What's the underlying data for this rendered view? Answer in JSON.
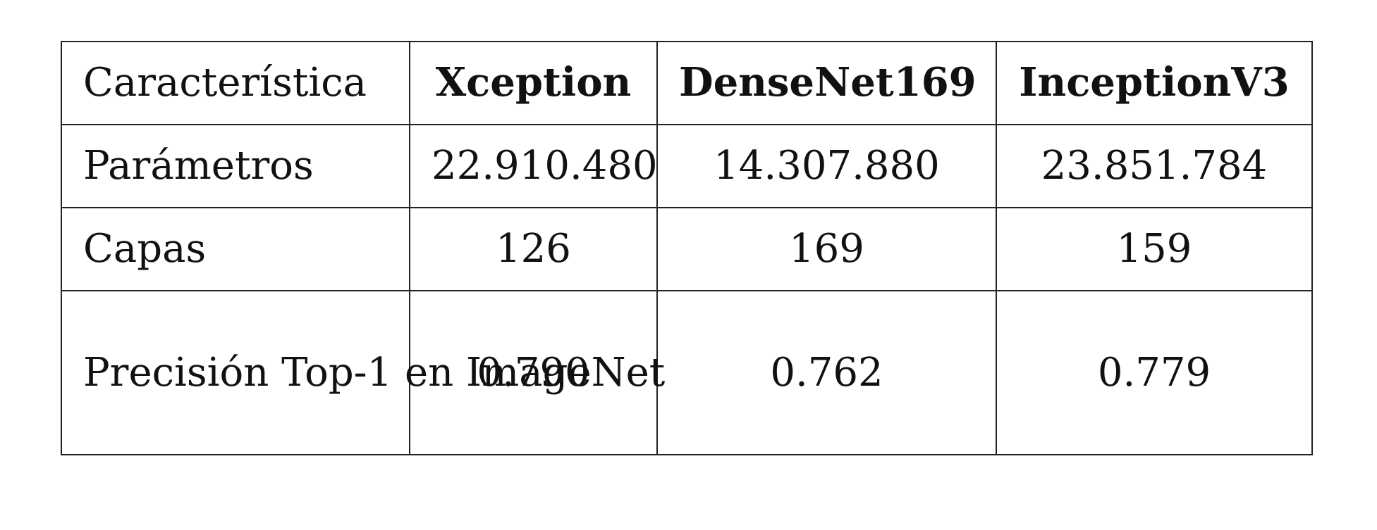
{
  "table": {
    "headers": [
      "Característica",
      "Xception",
      "DenseNet169",
      "InceptionV3"
    ],
    "rows": [
      {
        "label": "Parámetros",
        "values": [
          "22.910.480",
          "14.307.880",
          "23.851.784"
        ]
      },
      {
        "label": "Capas",
        "values": [
          "126",
          "169",
          "159"
        ]
      },
      {
        "label": "Precisión Top-1 en ImageNet",
        "values": [
          "0.790",
          "0.762",
          "0.779"
        ]
      }
    ]
  }
}
